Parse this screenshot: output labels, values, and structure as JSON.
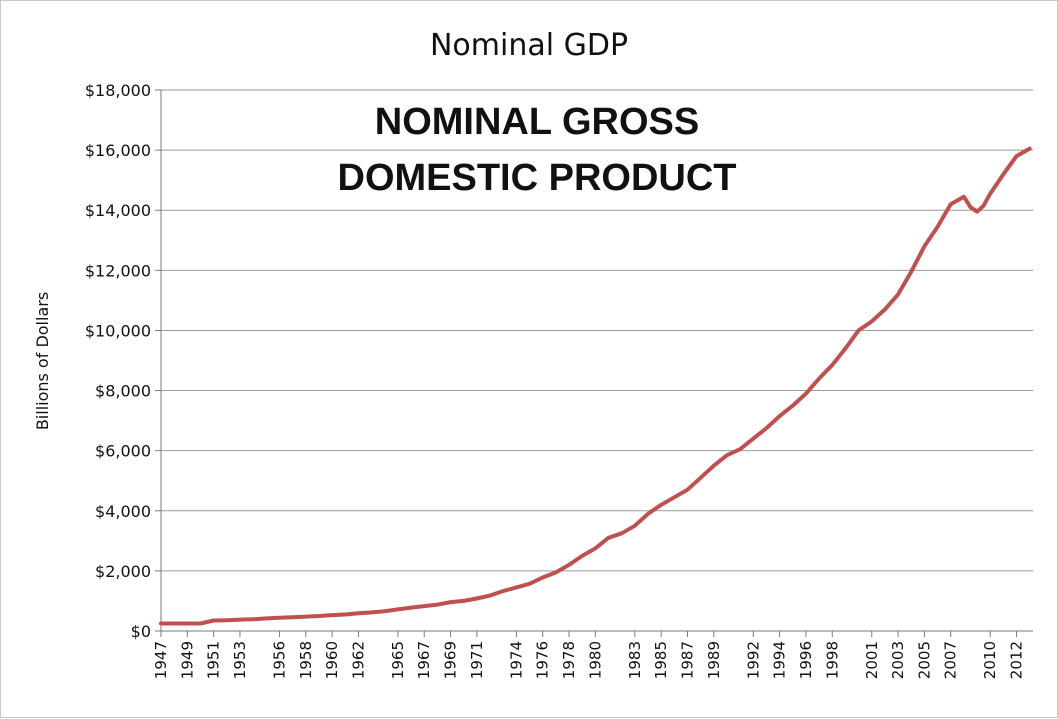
{
  "chart_data": {
    "type": "line",
    "title": "Nominal GDP",
    "annotation_lines": [
      "NOMINAL GROSS",
      "DOMESTIC PRODUCT"
    ],
    "ylabel": "Billions of Dollars",
    "xlabel": "",
    "ylim": [
      0,
      18000
    ],
    "yticks": [
      0,
      2000,
      4000,
      6000,
      8000,
      10000,
      12000,
      14000,
      16000,
      18000
    ],
    "ytick_labels": [
      "$0",
      "$2,000",
      "$4,000",
      "$6,000",
      "$8,000",
      "$10,000",
      "$12,000",
      "$14,000",
      "$16,000",
      "$18,000"
    ],
    "xlim": [
      1947,
      2013.25
    ],
    "xticks": [
      1947,
      1949,
      1951,
      1953,
      1956,
      1958,
      1960,
      1962,
      1965,
      1967,
      1969,
      1971,
      1974,
      1976,
      1978,
      1980,
      1983,
      1985,
      1987,
      1989,
      1992,
      1994,
      1996,
      1998,
      2001,
      2003,
      2005,
      2007,
      2010,
      2012
    ],
    "xtick_labels": [
      "1947",
      "1949",
      "1951",
      "1953",
      "1956",
      "1958",
      "1960",
      "1962",
      "1965",
      "1967",
      "1969",
      "1971",
      "1974",
      "1976",
      "1978",
      "1980",
      "1983",
      "1985",
      "1987",
      "1989",
      "1992",
      "1994",
      "1996",
      "1998",
      "2001",
      "2003",
      "2005",
      "2007",
      "2010",
      "2012"
    ],
    "grid": true,
    "series": [
      {
        "color": "#c0504d",
        "x": [
          1947,
          1948,
          1949,
          1950,
          1951,
          1952,
          1953,
          1954,
          1955,
          1956,
          1957,
          1958,
          1959,
          1960,
          1961,
          1962,
          1963,
          1964,
          1965,
          1966,
          1967,
          1968,
          1969,
          1970,
          1971,
          1972,
          1973,
          1974,
          1975,
          1976,
          1977,
          1978,
          1979,
          1980,
          1981,
          1982,
          1983,
          1984,
          1985,
          1986,
          1987,
          1988,
          1989,
          1990,
          1991,
          1992,
          1993,
          1994,
          1995,
          1996,
          1997,
          1998,
          1999,
          2000,
          2001,
          2002,
          2003,
          2004,
          2005,
          2006,
          2007,
          2008,
          2008.5,
          2009,
          2009.5,
          2010,
          2011,
          2012,
          2013
        ],
        "y": [
          250,
          250,
          250,
          250,
          350,
          360,
          380,
          390,
          420,
          440,
          460,
          480,
          500,
          530,
          550,
          590,
          620,
          660,
          720,
          780,
          830,
          880,
          960,
          1000,
          1080,
          1180,
          1330,
          1450,
          1570,
          1780,
          1950,
          2200,
          2500,
          2750,
          3100,
          3250,
          3500,
          3900,
          4200,
          4450,
          4700,
          5100,
          5500,
          5850,
          6050,
          6400,
          6750,
          7150,
          7500,
          7900,
          8400,
          8850,
          9400,
          10000,
          10300,
          10700,
          11200,
          11950,
          12800,
          13450,
          14200,
          14450,
          14100,
          13950,
          14150,
          14550,
          15200,
          15800,
          16050
        ]
      }
    ]
  }
}
